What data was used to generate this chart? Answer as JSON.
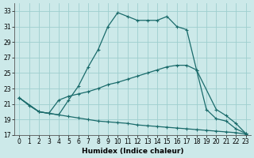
{
  "xlabel": "Humidex (Indice chaleur)",
  "background_color": "#cce9e9",
  "grid_color": "#aad4d4",
  "line_color": "#1a6b6b",
  "xlim": [
    -0.5,
    23.5
  ],
  "ylim": [
    17,
    34
  ],
  "yticks": [
    17,
    19,
    21,
    23,
    25,
    27,
    29,
    31,
    33
  ],
  "xticks": [
    0,
    1,
    2,
    3,
    4,
    5,
    6,
    7,
    8,
    9,
    10,
    11,
    12,
    13,
    14,
    15,
    16,
    17,
    18,
    19,
    20,
    21,
    22,
    23
  ],
  "line1_x": [
    0,
    1,
    2,
    3,
    4,
    5,
    6,
    7,
    8,
    9,
    10,
    11,
    12,
    13,
    14,
    15,
    16,
    17,
    18,
    19,
    20,
    21,
    22,
    23
  ],
  "line1_y": [
    21.8,
    20.8,
    20.0,
    19.8,
    19.6,
    21.5,
    23.3,
    25.8,
    28.0,
    31.0,
    32.8,
    32.3,
    31.8,
    31.8,
    31.8,
    32.3,
    31.0,
    30.6,
    25.4,
    20.3,
    19.1,
    18.8,
    17.8,
    17.2
  ],
  "line2_x": [
    0,
    2,
    3,
    4,
    5,
    6,
    7,
    8,
    9,
    10,
    11,
    12,
    13,
    14,
    15,
    16,
    17,
    18,
    20,
    21,
    22,
    23
  ],
  "line2_y": [
    21.8,
    20.0,
    19.8,
    21.5,
    22.0,
    22.3,
    22.6,
    23.0,
    23.5,
    23.8,
    24.2,
    24.6,
    25.0,
    25.4,
    25.8,
    26.0,
    26.0,
    25.4,
    20.3,
    19.5,
    18.5,
    17.2
  ],
  "line3_x": [
    0,
    2,
    3,
    4,
    5,
    6,
    7,
    8,
    9,
    10,
    11,
    12,
    13,
    14,
    15,
    16,
    17,
    18,
    19,
    20,
    21,
    22,
    23
  ],
  "line3_y": [
    21.8,
    20.0,
    19.8,
    19.6,
    19.4,
    19.2,
    19.0,
    18.8,
    18.7,
    18.6,
    18.5,
    18.3,
    18.2,
    18.1,
    18.0,
    17.9,
    17.8,
    17.7,
    17.6,
    17.5,
    17.4,
    17.3,
    17.1
  ]
}
